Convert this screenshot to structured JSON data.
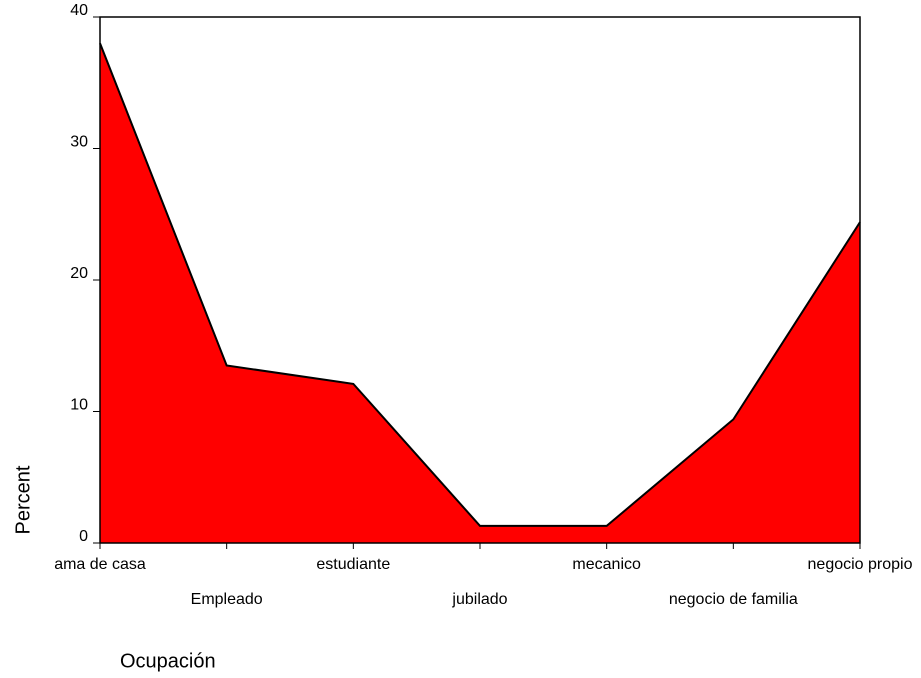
{
  "chart_data": {
    "type": "area",
    "x_label": "Ocupación",
    "y_label": "Percent",
    "categories": [
      "ama de casa",
      "Empleado",
      "estudiante",
      "jubilado",
      "mecanico",
      "negocio de familia",
      "negocio propio"
    ],
    "values": [
      38,
      13.5,
      12.1,
      1.3,
      1.3,
      9.4,
      24.4
    ],
    "color": "#ff0000",
    "ylim": [
      0,
      40
    ],
    "yticks": [
      0,
      10,
      20,
      30,
      40
    ],
    "grid": false
  }
}
